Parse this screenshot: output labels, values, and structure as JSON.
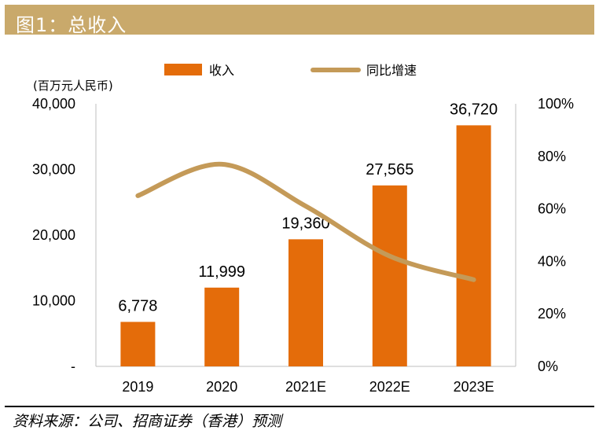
{
  "figure_title": "图1：总收入",
  "source": "资料来源：公司、招商证券（香港）预测",
  "colors": {
    "bar": "#e46c0a",
    "line": "#c49a58",
    "title_bg": "#c9a96b"
  },
  "chart_data": {
    "type": "bar+line",
    "categories": [
      "2019",
      "2020",
      "2021E",
      "2022E",
      "2023E"
    ],
    "series": [
      {
        "name": "收入",
        "type": "bar",
        "axis": "left",
        "values": [
          6778,
          11999,
          19360,
          27565,
          36720
        ],
        "labels": [
          "6,778",
          "11,999",
          "19,360",
          "27,565",
          "36,720"
        ]
      },
      {
        "name": "同比增速",
        "type": "line",
        "axis": "right",
        "values": [
          65,
          77,
          61,
          42,
          33
        ]
      }
    ],
    "y_left": {
      "unit": "(百万元人民币)",
      "min": 0,
      "max": 40000,
      "ticks": [
        0,
        10000,
        20000,
        30000,
        40000
      ],
      "tick_labels": [
        "-",
        "10,000",
        "20,000",
        "30,000",
        "40,000"
      ]
    },
    "y_right": {
      "min": 0,
      "max": 100,
      "ticks": [
        0,
        20,
        40,
        60,
        80,
        100
      ],
      "tick_labels": [
        "0%",
        "20%",
        "40%",
        "60%",
        "80%",
        "100%"
      ]
    },
    "legend": [
      "收入",
      "同比增速"
    ],
    "legend_position": "top"
  }
}
